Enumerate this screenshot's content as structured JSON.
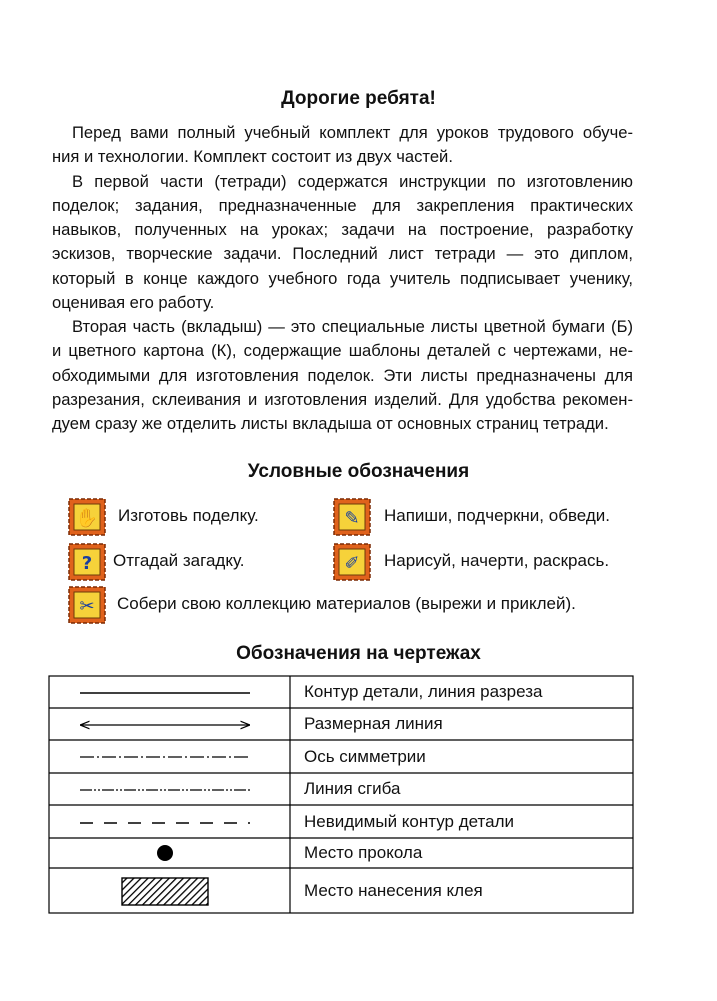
{
  "title": "Дорогие ребята!",
  "paragraphs": [
    [
      "Перед вами полный учебный комплект для уроков трудового обуче-",
      "ния и технологии. Комплект состоит из двух частей."
    ],
    [
      "В первой части (тетради) содержатся инструкции по изготовлению",
      "поделок; задания, предназначенные для закрепления практических",
      "навыков, полученных на уроках; задачи на построение, разработку",
      "эскизов, творческие задачи. Последний лист тетради — это диплом,",
      "который в конце каждого учебного года учитель подписывает ученику,",
      "оценивая его работу."
    ],
    [
      "Вторая часть (вкладыш) — это специальные листы цветной бумаги (Б)",
      "и цветного картона (К), содержащие шаблоны деталей с чертежами, не-",
      "обходимыми для изготовления поделок. Эти листы предназначены для",
      "разрезания, склеивания и изготовления изделий. Для удобства рекомен-",
      "дуем сразу же отделить листы вкладыша от основных страниц тетради."
    ]
  ],
  "legend": {
    "title": "Условные обозначения",
    "items": [
      "Изготовь поделку.",
      "Напиши, подчеркни, обведи.",
      "Отгадай загадку.",
      "Нарисуй, начерти, раскрась.",
      "Собери свою коллекцию материалов (вырежи и приклей)."
    ]
  },
  "drawings": {
    "title": "Обозначения на чертежах",
    "rows": [
      "Контур детали, линия разреза",
      "Размерная линия",
      "Ось симметрии",
      "Линия сгиба",
      "Невидимый контур детали",
      "Место прокола",
      "Место нанесения клея"
    ]
  }
}
